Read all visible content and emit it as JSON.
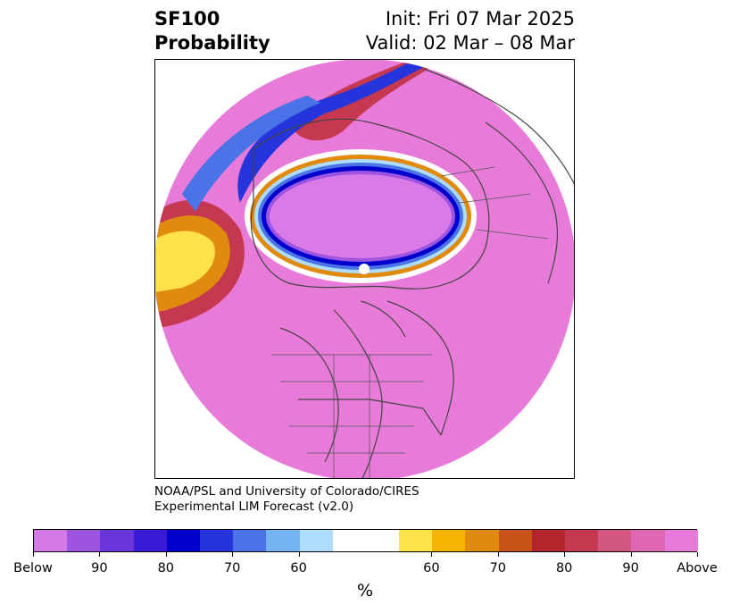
{
  "title": {
    "line1_left": "SF100",
    "line2_left": "Probability",
    "line1_right": "Init: Fri 07 Mar 2025",
    "line2_right": "Valid: 02 Mar – 08 Mar"
  },
  "credit": {
    "line1": "NOAA/PSL and University of Colorado/CIRES",
    "line2": "Experimental LIM Forecast (v2.0)"
  },
  "map": {
    "projection": "north-polar-stereographic",
    "background_color": "#e87ad9",
    "inner_low_color": "#d97ae8",
    "coastline_color": "#444444"
  },
  "colorbar": {
    "unit": "%",
    "colors": [
      "#d37ae8",
      "#9d54e0",
      "#6a36d9",
      "#3b1bd6",
      "#0000cc",
      "#2535db",
      "#4a73e8",
      "#74b3f4",
      "#aedcfc",
      "#ffffff",
      "#ffe14a",
      "#f4b400",
      "#e08b10",
      "#c85318",
      "#b3242b",
      "#c5384f",
      "#d45683",
      "#df67b6",
      "#e87ad9"
    ],
    "labels": [
      "Below",
      "90",
      "80",
      "70",
      "60",
      "60",
      "70",
      "80",
      "90",
      "Above"
    ]
  }
}
